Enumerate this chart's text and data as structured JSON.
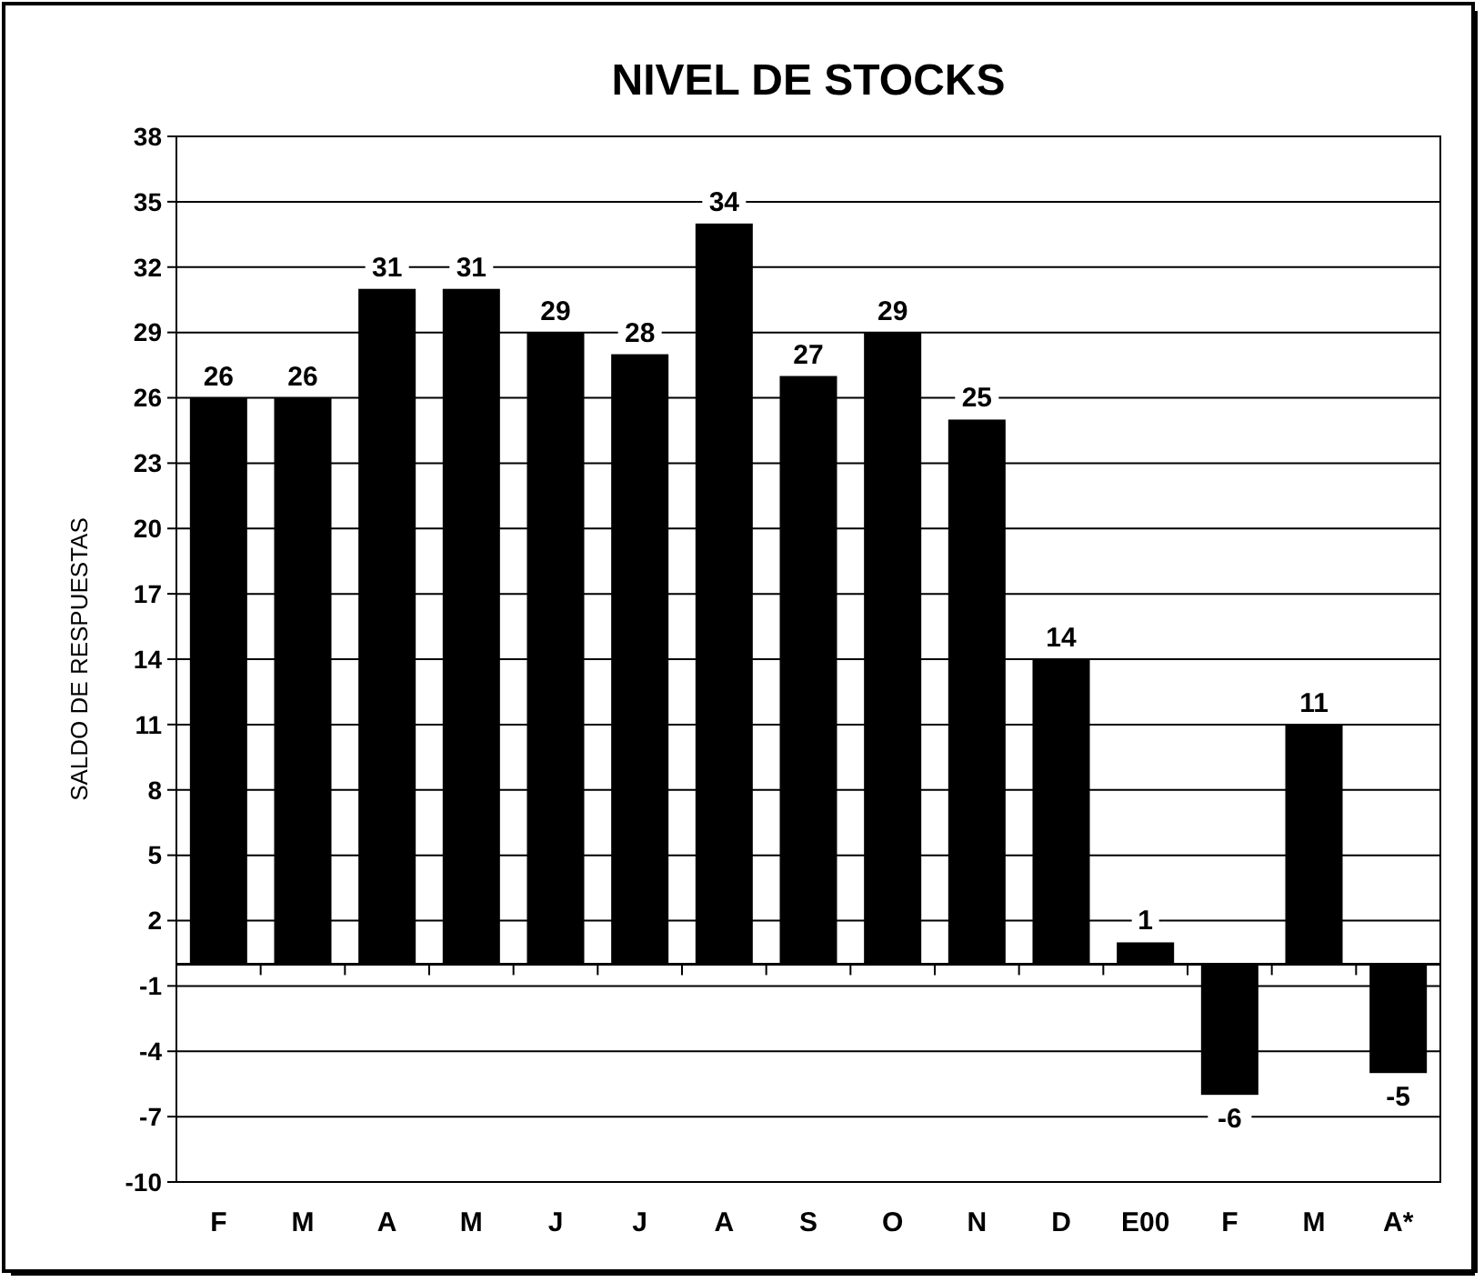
{
  "chart_data": {
    "type": "bar",
    "title": "NIVEL DE STOCKS",
    "ylabel": "SALDO DE RESPUESTAS",
    "categories": [
      "F",
      "M",
      "A",
      "M",
      "J",
      "J",
      "A",
      "S",
      "O",
      "N",
      "D",
      "E00",
      "F",
      "M",
      "A*"
    ],
    "values": [
      26,
      26,
      31,
      31,
      29,
      28,
      34,
      27,
      29,
      25,
      14,
      1,
      -6,
      11,
      -5
    ],
    "color": "#000000",
    "ylim": [
      -10,
      38
    ],
    "yticks": [
      -10,
      -7,
      -4,
      -1,
      2,
      5,
      8,
      11,
      14,
      17,
      20,
      23,
      26,
      29,
      32,
      35,
      38
    ],
    "grid": "y",
    "data_labels": true
  }
}
